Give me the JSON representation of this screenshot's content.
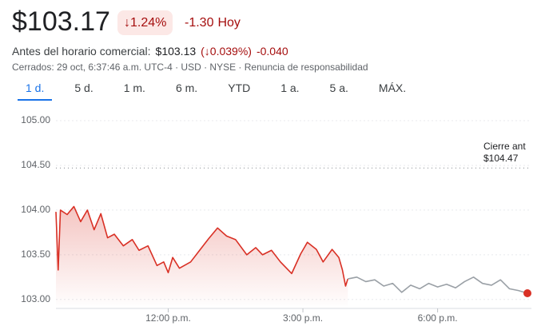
{
  "header": {
    "price": "$103.17",
    "change_pct": "↓1.24%",
    "change": "-1.30",
    "change_period": "Hoy",
    "premarket_label": "Antes del horario comercial:",
    "premarket_price": "$103.13",
    "premarket_change_pct": "(↓0.039%)",
    "premarket_change": "-0.040",
    "status": "Cerrados: 29 oct, 6:37:46 a.m. UTC-4 · USD · NYSE · Renuncia de responsabilidad"
  },
  "tabs": [
    "1 d.",
    "5 d.",
    "1 m.",
    "6 m.",
    "YTD",
    "1 a.",
    "5 a.",
    "MÁX."
  ],
  "active_tab": 0,
  "chart_data": {
    "type": "line",
    "x": [
      9.5,
      9.55,
      9.6,
      9.75,
      9.9,
      10.05,
      10.2,
      10.35,
      10.5,
      10.65,
      10.8,
      11.0,
      11.2,
      11.35,
      11.55,
      11.75,
      11.9,
      12.0,
      12.1,
      12.25,
      12.5,
      12.7,
      12.9,
      13.1,
      13.3,
      13.5,
      13.75,
      13.95,
      14.1,
      14.3,
      14.5,
      14.75,
      14.95,
      15.1,
      15.3,
      15.45,
      15.65,
      15.8,
      15.88,
      15.95,
      16.0,
      16.2,
      16.4,
      16.6,
      16.8,
      17.0,
      17.2,
      17.4,
      17.6,
      17.8,
      18.0,
      18.2,
      18.4,
      18.6,
      18.8,
      19.0,
      19.2,
      19.4,
      19.6,
      19.8,
      20.0
    ],
    "series": [
      {
        "color": "#d93025",
        "values": [
          103.98,
          103.33,
          104.0,
          103.95,
          104.04,
          103.87,
          104.0,
          103.78,
          103.96,
          103.69,
          103.73,
          103.6,
          103.67,
          103.55,
          103.6,
          103.38,
          103.42,
          103.3,
          103.47,
          103.35,
          103.42,
          103.55,
          103.68,
          103.8,
          103.71,
          103.67,
          103.5,
          103.58,
          103.5,
          103.55,
          103.42,
          103.29,
          103.51,
          103.64,
          103.56,
          103.42,
          103.56,
          103.47,
          103.33,
          103.15,
          103.23,
          null,
          null,
          null,
          null,
          null,
          null,
          null,
          null,
          null,
          null,
          null,
          null,
          null,
          null,
          null,
          null,
          null,
          null,
          null,
          null
        ]
      },
      {
        "color": "#9aa0a6",
        "values": [
          null,
          null,
          null,
          null,
          null,
          null,
          null,
          null,
          null,
          null,
          null,
          null,
          null,
          null,
          null,
          null,
          null,
          null,
          null,
          null,
          null,
          null,
          null,
          null,
          null,
          null,
          null,
          null,
          null,
          null,
          null,
          null,
          null,
          null,
          null,
          null,
          null,
          null,
          null,
          null,
          103.23,
          103.25,
          103.2,
          103.22,
          103.15,
          103.18,
          103.08,
          103.16,
          103.12,
          103.18,
          103.14,
          103.17,
          103.13,
          103.2,
          103.25,
          103.18,
          103.16,
          103.22,
          103.12,
          103.1,
          103.07
        ]
      }
    ],
    "xlim": [
      9.5,
      20
    ],
    "xticks": [
      {
        "value": 12,
        "label": "12:00 p.m."
      },
      {
        "value": 15,
        "label": "3:00 p.m."
      },
      {
        "value": 18,
        "label": "6:00 p.m."
      }
    ],
    "ylim": [
      102.9,
      105
    ],
    "yticks": [
      {
        "value": 103,
        "label": "103.00"
      },
      {
        "value": 103.5,
        "label": "103.50"
      },
      {
        "value": 104,
        "label": "104.00"
      },
      {
        "value": 104.5,
        "label": "104.50"
      },
      {
        "value": 105,
        "label": "105.00"
      }
    ],
    "grid": true,
    "reference_line": {
      "label": "Cierre ant",
      "value": 104.47,
      "value_label": "$104.47"
    }
  }
}
